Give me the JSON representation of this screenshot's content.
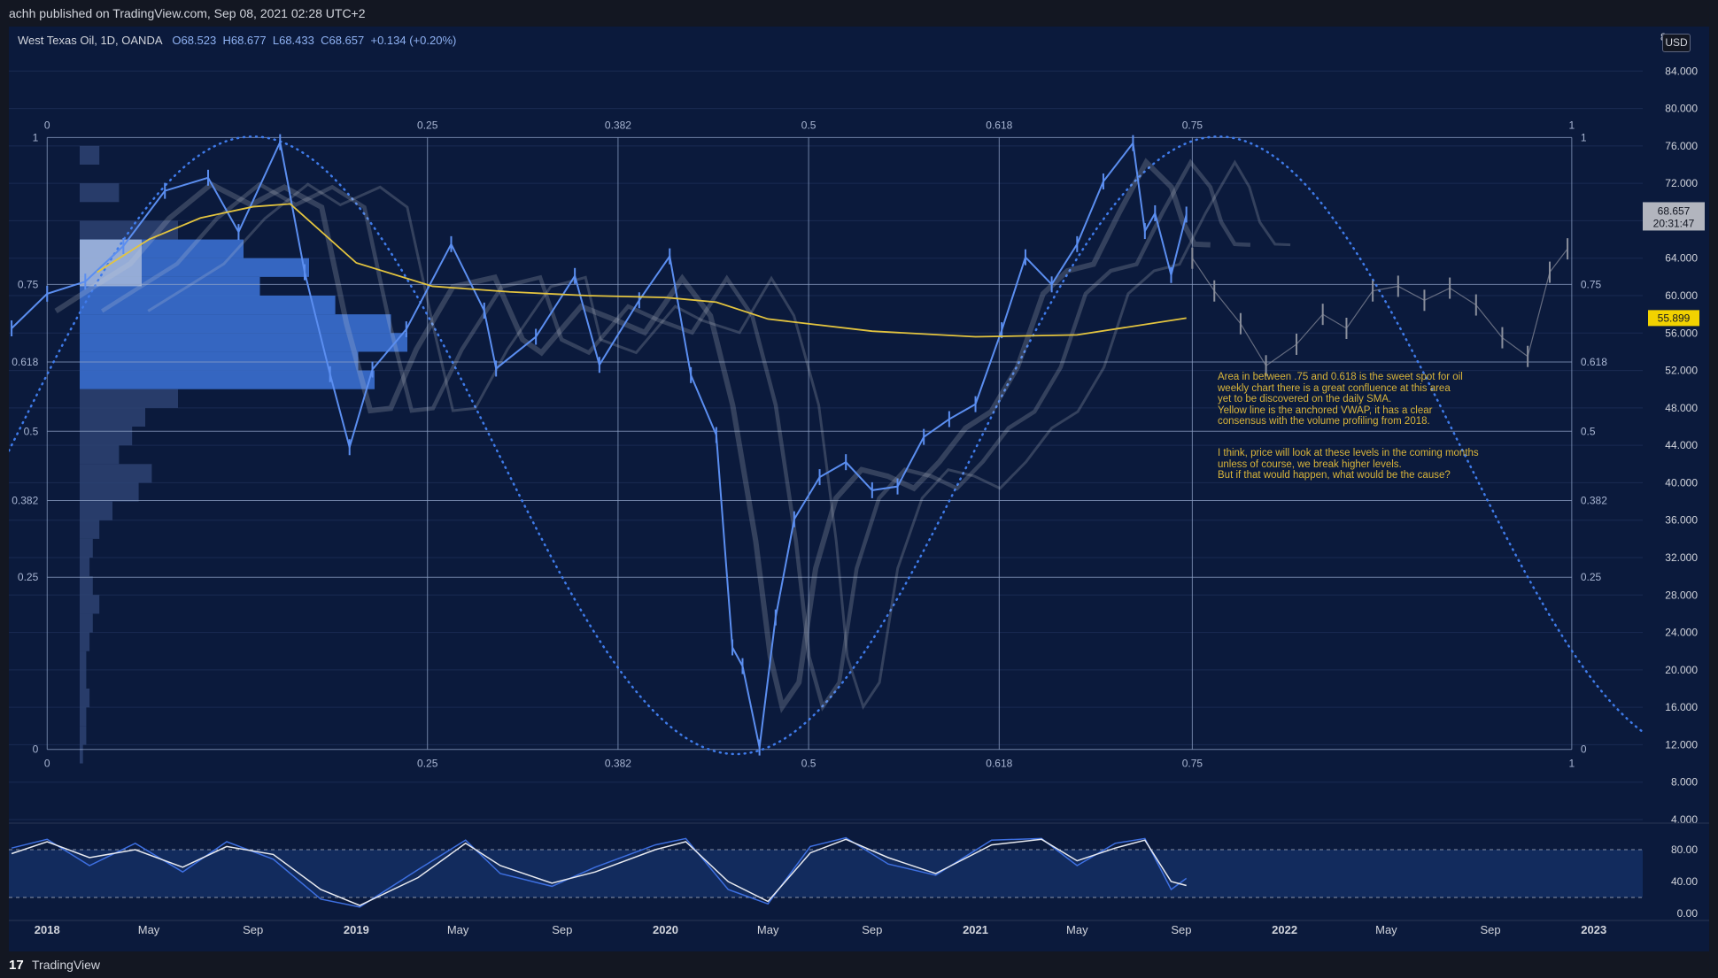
{
  "header": {
    "publisher_text": "achh published on TradingView.com, Sep 08, 2021 02:28 UTC+2"
  },
  "legend": {
    "symbol": "West Texas Oil, 1D, OANDA",
    "open": "O68.523",
    "high": "H68.677",
    "low": "L68.433",
    "close": "C68.657",
    "change": "+0.134 (+0.20%)"
  },
  "currency": "USD",
  "footer": {
    "brand": "TradingView",
    "logo": "tradingview-logo-icon"
  },
  "annotations": {
    "note1": "Area in between .75 and 0.618 is the sweet spot for oil\nweekly chart there is a great confluence at this area\nyet to be discovered on the daily SMA.\nYellow line is the anchored VWAP, it has a clear\nconsensus with the volume profiling from 2018.",
    "note2": "I think, price will look at these levels in the coming months\nunless of course, we break higher levels.\nBut if that would happen, what would be the cause?"
  },
  "colors": {
    "background": "#0b1a3c",
    "candles": "#5b8ef0",
    "projection": "#8a8f9c",
    "vwap": "#e3c43f",
    "fib_lines": "#8fa3c7",
    "cycle": "#3f7bea",
    "price_tag": "#b2b5be",
    "vwap_tag": "#f2d200"
  },
  "chart_data": {
    "type": "line",
    "symbol": "West Texas Oil",
    "ylim": [
      4,
      88
    ],
    "y_ticks": [
      "84.000",
      "80.000",
      "76.000",
      "72.000",
      "68.000",
      "64.000",
      "60.000",
      "56.000",
      "52.000",
      "48.000",
      "44.000",
      "40.000",
      "36.000",
      "32.000",
      "28.000",
      "24.000",
      "20.000",
      "16.000",
      "12.000",
      "8.000",
      "4.000"
    ],
    "x_ticks": [
      "2018",
      "May",
      "Sep",
      "2019",
      "May",
      "Sep",
      "2020",
      "May",
      "Sep",
      "2021",
      "May",
      "Sep",
      "2022",
      "May",
      "Sep",
      "2023"
    ],
    "price_axis_top_partial": "8",
    "last_price_label": "68.657",
    "countdown_label": "20:31:47",
    "vwap_label": "55.899",
    "fib_horizontal": {
      "levels": [
        "1",
        "0.75",
        "0.618",
        "0.5",
        "0.382",
        "0.25",
        "0"
      ],
      "values": [
        76.9,
        61.2,
        52.9,
        45.5,
        38.1,
        29.9,
        11.5
      ]
    },
    "fib_time": {
      "levels": [
        "0",
        "0.25",
        "0.382",
        "0.5",
        "0.618",
        "0.75",
        "1"
      ],
      "x": [
        "2018-01-01",
        "2019-03-26",
        "2019-11-06",
        "2020-06-18",
        "2021-01-29",
        "2021-09-14",
        "2022-12-06"
      ]
    },
    "price": {
      "x": [
        "2017-11-20",
        "2018-01-01",
        "2018-02-15",
        "2018-04-01",
        "2018-05-20",
        "2018-07-10",
        "2018-08-15",
        "2018-10-03",
        "2018-11-01",
        "2018-12-01",
        "2018-12-24",
        "2019-01-20",
        "2019-03-01",
        "2019-04-23",
        "2019-06-01",
        "2019-06-15",
        "2019-08-01",
        "2019-09-16",
        "2019-10-15",
        "2019-12-01",
        "2020-01-06",
        "2020-01-31",
        "2020-03-01",
        "2020-03-20",
        "2020-04-01",
        "2020-04-21",
        "2020-05-10",
        "2020-06-01",
        "2020-07-01",
        "2020-08-01",
        "2020-09-01",
        "2020-10-01",
        "2020-11-01",
        "2020-12-01",
        "2021-01-01",
        "2021-02-01",
        "2021-03-01",
        "2021-04-01",
        "2021-05-01",
        "2021-06-01",
        "2021-07-06",
        "2021-07-20",
        "2021-08-01",
        "2021-08-20",
        "2021-09-07"
      ],
      "values": [
        56.5,
        60.2,
        61.5,
        65.3,
        71.2,
        72.6,
        66.8,
        76.4,
        62.5,
        51.6,
        43.8,
        52.1,
        56.4,
        65.5,
        58.4,
        52.2,
        55.6,
        62.1,
        52.6,
        59.5,
        64.2,
        51.5,
        45.1,
        22.4,
        20.4,
        11.7,
        25.6,
        36.1,
        40.6,
        42.2,
        39.2,
        39.6,
        44.9,
        46.8,
        48.4,
        56.3,
        64.1,
        61.2,
        65.5,
        72.2,
        76.3,
        66.9,
        68.8,
        62.2,
        68.66
      ]
    },
    "projection": {
      "x": [
        "2021-09-14",
        "2021-10-10",
        "2021-11-10",
        "2021-12-10",
        "2022-01-15",
        "2022-02-15",
        "2022-03-15",
        "2022-04-15",
        "2022-05-15",
        "2022-06-15",
        "2022-07-15",
        "2022-08-15",
        "2022-09-15",
        "2022-10-15",
        "2022-11-10",
        "2022-12-01"
      ],
      "values": [
        64.0,
        60.5,
        57.0,
        52.5,
        54.8,
        58.0,
        56.5,
        60.5,
        61.0,
        59.5,
        60.8,
        59.0,
        55.5,
        53.5,
        62.5,
        65.0
      ]
    },
    "vwap": {
      "x": [
        "2018-03-01",
        "2018-05-01",
        "2018-07-01",
        "2018-09-01",
        "2018-10-15",
        "2019-01-01",
        "2019-04-01",
        "2019-07-01",
        "2019-10-01",
        "2020-01-01",
        "2020-03-01",
        "2020-05-01",
        "2020-09-01",
        "2021-01-01",
        "2021-05-01",
        "2021-09-07"
      ],
      "values": [
        62.5,
        66.0,
        68.3,
        69.5,
        69.8,
        63.5,
        61.0,
        60.4,
        60.0,
        59.8,
        59.3,
        57.5,
        56.2,
        55.6,
        55.8,
        57.6
      ]
    },
    "volume_profile": {
      "price": [
        76,
        72,
        68,
        66,
        64,
        62,
        60,
        58,
        56,
        54,
        52,
        50,
        48,
        46,
        44,
        42,
        40,
        38,
        36,
        34,
        32,
        30,
        28,
        26,
        24,
        22,
        20,
        18,
        16,
        14,
        12
      ],
      "volume": [
        6,
        12,
        30,
        50,
        70,
        55,
        78,
        95,
        100,
        85,
        90,
        30,
        20,
        16,
        12,
        22,
        18,
        10,
        6,
        4,
        3,
        4,
        6,
        4,
        3,
        2,
        2,
        3,
        2,
        2,
        1
      ]
    },
    "stochastic": {
      "ylim": [
        0,
        100
      ],
      "y_ticks": [
        "80.00",
        "40.00",
        "0.00"
      ],
      "band": [
        20,
        80
      ],
      "x": [
        "2017-11-20",
        "2018-01-01",
        "2018-02-20",
        "2018-04-15",
        "2018-06-10",
        "2018-08-01",
        "2018-09-25",
        "2018-11-20",
        "2019-01-05",
        "2019-03-15",
        "2019-05-10",
        "2019-06-20",
        "2019-08-20",
        "2019-10-10",
        "2019-12-20",
        "2020-01-25",
        "2020-03-15",
        "2020-05-01",
        "2020-06-20",
        "2020-08-01",
        "2020-09-20",
        "2020-11-15",
        "2021-01-20",
        "2021-03-20",
        "2021-05-01",
        "2021-06-15",
        "2021-07-20",
        "2021-08-20",
        "2021-09-07"
      ],
      "k": [
        82,
        93,
        60,
        88,
        52,
        90,
        68,
        18,
        8,
        55,
        92,
        50,
        34,
        58,
        86,
        94,
        30,
        12,
        84,
        95,
        62,
        48,
        92,
        94,
        60,
        88,
        94,
        30,
        44
      ],
      "d": [
        75,
        90,
        70,
        80,
        58,
        84,
        74,
        30,
        10,
        45,
        88,
        60,
        38,
        52,
        80,
        90,
        40,
        15,
        76,
        93,
        70,
        50,
        86,
        93,
        66,
        82,
        92,
        40,
        35
      ]
    }
  }
}
